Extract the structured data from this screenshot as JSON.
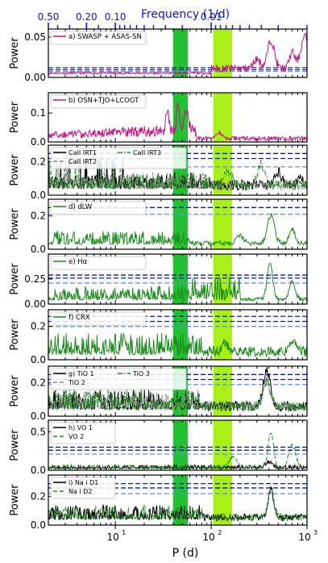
{
  "figure": {
    "top_axis_label": "Frequency (1/d)",
    "bottom_axis_label": "P (d)",
    "ylabel": "Power"
  },
  "chart_data": {
    "type": "line",
    "x_scale": "log",
    "xlim": [
      2,
      1000
    ],
    "bottom_ticks": [
      {
        "value": 10,
        "label": "10",
        "exp": "1"
      },
      {
        "value": 100,
        "label": "10",
        "exp": "2"
      },
      {
        "value": 1000,
        "label": "10",
        "exp": "3"
      }
    ],
    "top_ticks": [
      {
        "freq": 0.5,
        "label": "0.50"
      },
      {
        "freq": 0.2,
        "label": "0.20"
      },
      {
        "freq": 0.1,
        "label": "0.10"
      },
      {
        "freq": 0.01,
        "label": "0.01"
      }
    ],
    "top_minor_freqs": [
      0.4,
      0.3,
      0.15,
      0.09,
      0.08,
      0.07,
      0.06,
      0.05,
      0.04,
      0.03,
      0.02,
      0.009,
      0.008,
      0.007,
      0.006,
      0.005,
      0.004,
      0.003,
      0.002,
      0.001
    ],
    "colors": {
      "green_band": "#22c032",
      "yellow_band": "#a8f018",
      "fap_dark": "#0a1aa8",
      "fap_light": "#5f8ff0",
      "axis_blue": "#1010e0"
    },
    "bands": {
      "green": [
        40,
        57
      ],
      "yellow": [
        105,
        165
      ]
    },
    "panels": [
      {
        "id": "a",
        "ylim": [
          0,
          0.06
        ],
        "yticks": [
          0.0,
          0.05
        ],
        "ytick_labels": [
          "0.00",
          "0.05"
        ],
        "fap": [
          0.012,
          0.0095,
          0.0075
        ],
        "series": [
          {
            "name": "a) SWASP + ASAS-SN",
            "color": "#c71585",
            "kind": "a"
          }
        ]
      },
      {
        "id": "b",
        "ylim": [
          0,
          0.17
        ],
        "yticks": [
          0.0,
          0.1
        ],
        "ytick_labels": [
          "0.0",
          "0.1"
        ],
        "fap": [],
        "series": [
          {
            "name": "b) OSN+TJO+LCOGT",
            "color": "#c71585",
            "kind": "b"
          }
        ]
      },
      {
        "id": "c",
        "ylim": [
          0,
          0.3
        ],
        "yticks": [
          0.0,
          0.2
        ],
        "ytick_labels": [
          "0.0",
          "0.2"
        ],
        "fap": [
          0.25,
          0.22,
          0.17
        ],
        "series": [
          {
            "name": "CaII IRT1",
            "color": "#000000",
            "kind": "c1",
            "dash": ""
          },
          {
            "name": "CaII IRT2",
            "color": "#888888",
            "kind": "c2",
            "dash": "5,3"
          },
          {
            "name": "CaII IRT3",
            "color": "#228b22",
            "kind": "c3",
            "dash": "6,2,1.5,2"
          }
        ]
      },
      {
        "id": "d",
        "ylim": [
          0,
          0.3
        ],
        "yticks": [
          0.0,
          0.2
        ],
        "ytick_labels": [
          "0.0",
          "0.2"
        ],
        "fap": [
          0.25,
          0.21
        ],
        "series": [
          {
            "name": "d) dLW",
            "color": "#1e8c1e",
            "kind": "d"
          }
        ]
      },
      {
        "id": "e",
        "ylim": [
          0,
          0.5
        ],
        "yticks": [
          0.0,
          0.25
        ],
        "ytick_labels": [
          "0.00",
          "0.25"
        ],
        "fap": [
          0.29,
          0.26,
          0.21
        ],
        "series": [
          {
            "name": "e) Hα",
            "color": "#1e8c1e",
            "kind": "e"
          }
        ]
      },
      {
        "id": "f",
        "ylim": [
          0,
          0.3
        ],
        "yticks": [
          0.0,
          0.2
        ],
        "ytick_labels": [
          "0.0",
          "0.2"
        ],
        "fap": [
          0.26,
          0.23,
          0.2
        ],
        "series": [
          {
            "name": "f) CRX",
            "color": "#1e8c1e",
            "kind": "f"
          }
        ]
      },
      {
        "id": "g",
        "ylim": [
          0,
          0.3
        ],
        "yticks": [
          0.0,
          0.2
        ],
        "ytick_labels": [
          "0.0",
          "0.2"
        ],
        "fap": [
          0.25,
          0.22,
          0.19
        ],
        "series": [
          {
            "name": "g) TiO 1",
            "color": "#000000",
            "kind": "g1",
            "dash": ""
          },
          {
            "name": "TiO 2",
            "color": "#888888",
            "kind": "g2",
            "dash": "5,3"
          },
          {
            "name": "TiO 3",
            "color": "#228b22",
            "kind": "g3",
            "dash": "6,2,1.5,2"
          }
        ]
      },
      {
        "id": "h",
        "ylim": [
          0,
          0.65
        ],
        "yticks": [
          0.0,
          0.5
        ],
        "ytick_labels": [
          "0.0",
          "0.5"
        ],
        "fap": [
          0.3,
          0.26,
          0.21
        ],
        "series": [
          {
            "name": "h) VO 1",
            "color": "#000000",
            "kind": "h1",
            "dash": ""
          },
          {
            "name": "VO 2",
            "color": "#228b22",
            "kind": "h2",
            "dash": "5,3"
          }
        ]
      },
      {
        "id": "i",
        "ylim": [
          0,
          0.35
        ],
        "yticks": [
          0.0,
          0.2
        ],
        "ytick_labels": [
          "0.0",
          "0.2"
        ],
        "fap": [
          0.29,
          0.26,
          0.22
        ],
        "series": [
          {
            "name": "i) Na i D1",
            "color": "#000000",
            "kind": "i1",
            "dash": ""
          },
          {
            "name": "Na i D2",
            "color": "#228b22",
            "kind": "i2",
            "dash": "5,3"
          }
        ]
      }
    ]
  }
}
